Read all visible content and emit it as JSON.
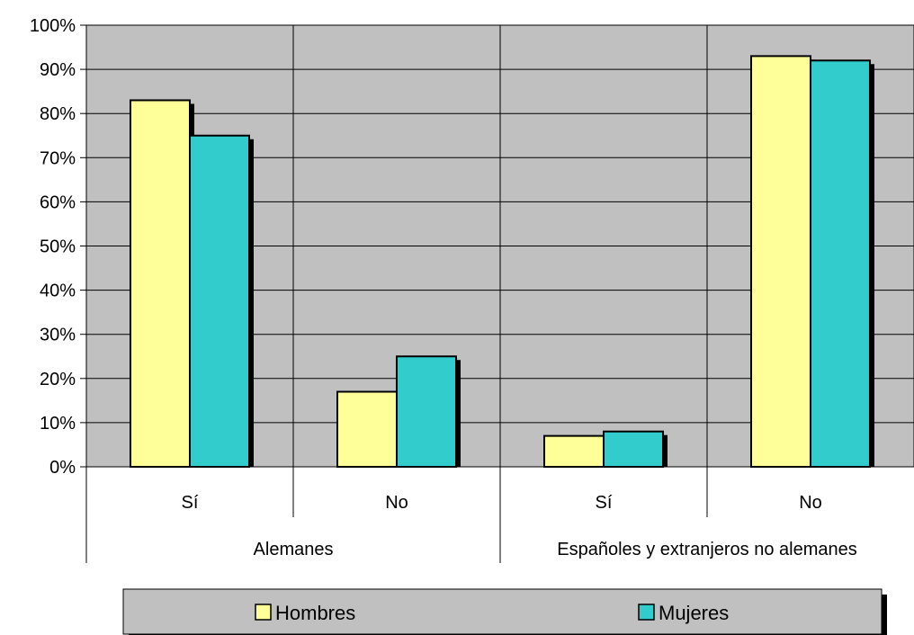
{
  "chart_data": {
    "type": "bar",
    "groups": [
      {
        "label": "Alemanes",
        "categories": [
          "Sí",
          "No"
        ]
      },
      {
        "label": "Españoles y extranjeros no alemanes",
        "categories": [
          "Sí",
          "No"
        ]
      }
    ],
    "categories": [
      "Sí",
      "No",
      "Sí",
      "No"
    ],
    "series": [
      {
        "name": "Hombres",
        "color": "#FFFF99",
        "values": [
          83,
          17,
          7,
          93
        ]
      },
      {
        "name": "Mujeres",
        "color": "#33CCCC",
        "values": [
          75,
          25,
          8,
          92
        ]
      }
    ],
    "ylim": [
      0,
      100
    ],
    "yticks": [
      "0%",
      "10%",
      "20%",
      "30%",
      "40%",
      "50%",
      "60%",
      "70%",
      "80%",
      "90%",
      "100%"
    ],
    "plot_background": "#C0C0C0",
    "grid": true,
    "legend_position": "bottom"
  }
}
